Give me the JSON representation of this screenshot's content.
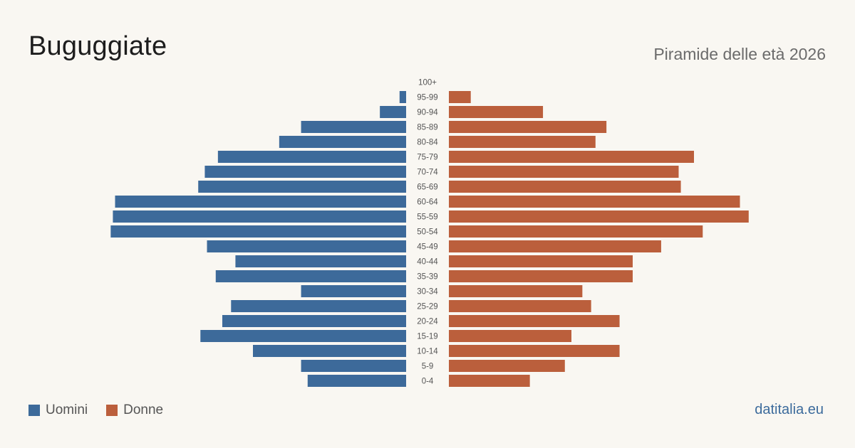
{
  "header": {
    "title": "Buguggiate",
    "subtitle": "Piramide delle età 2026"
  },
  "legend": {
    "items": [
      {
        "label": "Uomini",
        "color": "#3d6a9a"
      },
      {
        "label": "Donne",
        "color": "#bb5f3c"
      }
    ]
  },
  "footer": {
    "brand": "datitalia.eu"
  },
  "chart_data": {
    "type": "bar",
    "orientation": "horizontal-pyramid",
    "categories": [
      "100+",
      "95-99",
      "90-94",
      "85-89",
      "80-84",
      "75-79",
      "70-74",
      "65-69",
      "60-64",
      "55-59",
      "50-54",
      "45-49",
      "40-44",
      "35-39",
      "30-34",
      "25-29",
      "20-24",
      "15-19",
      "10-14",
      "5-9",
      "0-4"
    ],
    "series": [
      {
        "name": "Uomini",
        "color": "#3d6a9a",
        "values": [
          0,
          3,
          12,
          48,
          58,
          86,
          92,
          95,
          133,
          134,
          135,
          91,
          78,
          87,
          48,
          80,
          84,
          94,
          70,
          48,
          45
        ]
      },
      {
        "name": "Donne",
        "color": "#bb5f3c",
        "values": [
          0,
          10,
          43,
          72,
          67,
          112,
          105,
          106,
          133,
          137,
          116,
          97,
          84,
          84,
          61,
          65,
          78,
          56,
          78,
          53,
          37
        ]
      }
    ],
    "xlim": [
      0,
      140
    ],
    "grid": false,
    "legend_position": "bottom-left"
  }
}
